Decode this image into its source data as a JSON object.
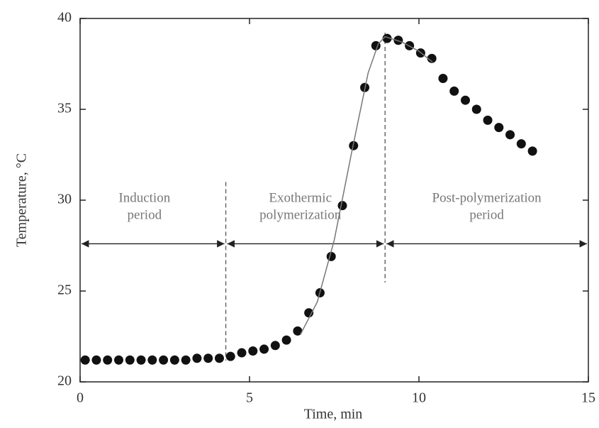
{
  "chart_data": {
    "type": "scatter",
    "x_label": "Time, min",
    "y_label": "Temperature, °C",
    "xlim": [
      0,
      15
    ],
    "xticks": [
      0,
      5,
      10,
      15
    ],
    "ylim": [
      20,
      40
    ],
    "yticks": [
      20,
      25,
      30,
      35,
      40
    ],
    "color": "#111111",
    "series": [
      {
        "x": [
          0.15,
          0.48,
          0.81,
          1.14,
          1.47,
          1.8,
          2.13,
          2.46,
          2.79,
          3.12,
          3.45,
          3.78,
          4.11,
          4.44,
          4.77,
          5.1,
          5.43,
          5.76,
          6.09,
          6.42,
          6.75,
          7.08,
          7.41,
          7.74,
          8.07,
          8.4,
          8.73,
          9.06,
          9.39,
          9.72,
          10.05,
          10.38,
          10.71,
          11.04,
          11.37,
          11.7,
          12.03,
          12.36,
          12.69,
          13.02,
          13.35
        ],
        "values": [
          21.2,
          21.2,
          21.2,
          21.2,
          21.2,
          21.2,
          21.2,
          21.2,
          21.2,
          21.2,
          21.3,
          21.3,
          21.3,
          21.4,
          21.6,
          21.7,
          21.8,
          22.0,
          22.3,
          22.8,
          23.8,
          24.9,
          26.9,
          29.7,
          33.0,
          36.2,
          38.5,
          38.9,
          38.8,
          38.5,
          38.1,
          37.8,
          36.7,
          36.0,
          35.5,
          35.0,
          34.4,
          34.0,
          33.6,
          33.1,
          32.7
        ],
        "color": "#111111",
        "style": "markers"
      },
      {
        "x": [
          6.5,
          7.0,
          7.5,
          8.0,
          8.5,
          8.8,
          9.0,
          9.5,
          10.0,
          10.4
        ],
        "values": [
          22.6,
          24.4,
          27.8,
          32.5,
          37.0,
          38.6,
          39.0,
          38.7,
          38.2,
          37.6
        ],
        "color": "#777777",
        "style": "line"
      }
    ],
    "phase_boundaries": [
      4.3,
      9.0
    ],
    "annotations": [
      {
        "lines": [
          "Induction",
          "period"
        ],
        "x": 1.9,
        "y": 29.6
      },
      {
        "lines": [
          "Exothermic",
          "polymerization"
        ],
        "x": 6.5,
        "y": 29.6
      },
      {
        "lines": [
          "Post-polymerization",
          "period"
        ],
        "x": 12.0,
        "y": 29.6
      }
    ]
  }
}
